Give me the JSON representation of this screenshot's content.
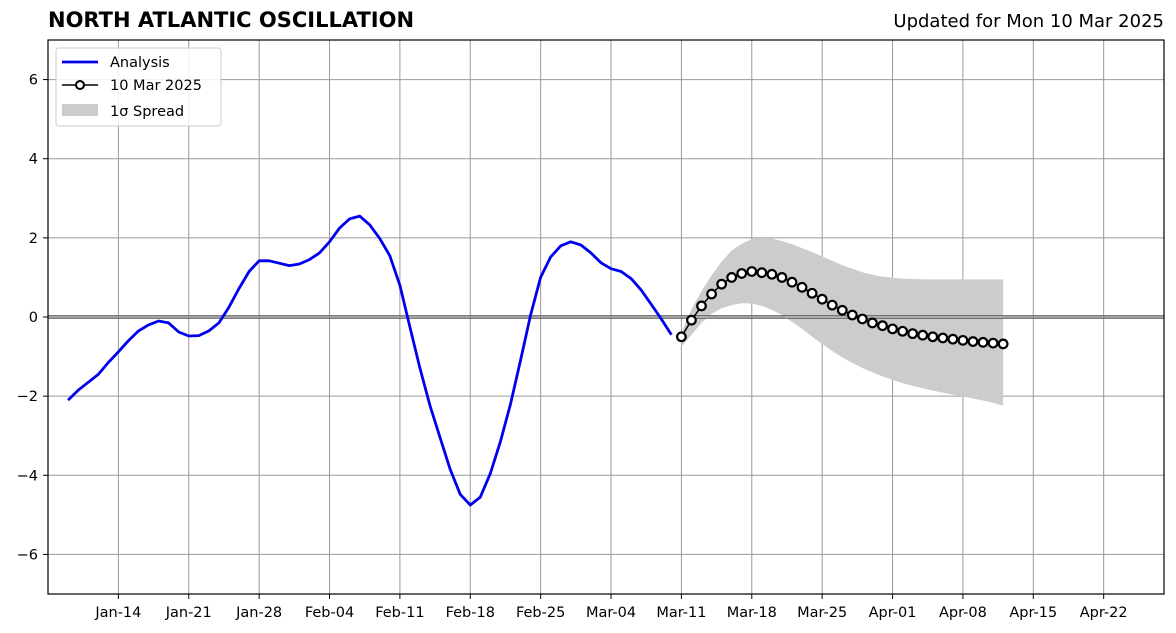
{
  "header": {
    "title": "NORTH ATLANTIC OSCILLATION",
    "updated": "Updated for Mon 10 Mar 2025"
  },
  "colors": {
    "analysis": "#0000ee",
    "forecast": "#000000",
    "spread": "#cccccc",
    "grid": "#999999",
    "zero_line": "#555555"
  },
  "chart_data": {
    "type": "line",
    "title": "NORTH ATLANTIC OSCILLATION",
    "subtitle": "Updated for Mon 10 Mar 2025",
    "xlabel": "",
    "ylabel": "",
    "xlim": [
      "2025-01-07",
      "2025-04-28"
    ],
    "ylim": [
      -7,
      7
    ],
    "grid": true,
    "legend_position": "top-left",
    "x_ticks": [
      "Jan-14",
      "Jan-21",
      "Jan-28",
      "Feb-04",
      "Feb-11",
      "Feb-18",
      "Feb-25",
      "Mar-04",
      "Mar-11",
      "Mar-18",
      "Mar-25",
      "Apr-01",
      "Apr-08",
      "Apr-15",
      "Apr-22"
    ],
    "x_tick_dates": [
      "2025-01-14",
      "2025-01-21",
      "2025-01-28",
      "2025-02-04",
      "2025-02-11",
      "2025-02-18",
      "2025-02-25",
      "2025-03-04",
      "2025-03-11",
      "2025-03-18",
      "2025-03-25",
      "2025-04-01",
      "2025-04-08",
      "2025-04-15",
      "2025-04-22"
    ],
    "y_ticks": [
      -6,
      -4,
      -2,
      0,
      2,
      4,
      6
    ],
    "y_tick_labels": [
      "−6",
      "−4",
      "−2",
      "0",
      "2",
      "4",
      "6"
    ],
    "legend": [
      {
        "label": "Analysis"
      },
      {
        "label": "10 Mar 2025"
      },
      {
        "label": "1σ Spread"
      }
    ],
    "series": [
      {
        "name": "Analysis",
        "start_date": "2025-01-09",
        "values": [
          -2.1,
          -1.85,
          -1.65,
          -1.45,
          -1.15,
          -0.88,
          -0.6,
          -0.35,
          -0.2,
          -0.1,
          -0.15,
          -0.38,
          -0.48,
          -0.47,
          -0.35,
          -0.15,
          0.25,
          0.72,
          1.15,
          1.42,
          1.42,
          1.36,
          1.3,
          1.34,
          1.45,
          1.62,
          1.9,
          2.25,
          2.48,
          2.55,
          2.33,
          1.98,
          1.55,
          0.8,
          -0.25,
          -1.3,
          -2.25,
          -3.05,
          -3.85,
          -4.48,
          -4.75,
          -4.55,
          -3.95,
          -3.15,
          -2.2,
          -1.1,
          0.05,
          1.0,
          1.52,
          1.8,
          1.9,
          1.82,
          1.62,
          1.37,
          1.22,
          1.15,
          0.97,
          0.68,
          0.32,
          -0.05,
          -0.45
        ]
      },
      {
        "name": "10 Mar 2025",
        "start_date": "2025-03-11",
        "values": [
          -0.5,
          -0.08,
          0.28,
          0.58,
          0.83,
          1.0,
          1.1,
          1.15,
          1.12,
          1.08,
          1.0,
          0.88,
          0.75,
          0.6,
          0.45,
          0.3,
          0.17,
          0.05,
          -0.05,
          -0.15,
          -0.22,
          -0.3,
          -0.36,
          -0.42,
          -0.46,
          -0.5,
          -0.53,
          -0.56,
          -0.59,
          -0.62,
          -0.64,
          -0.66,
          -0.68
        ]
      }
    ],
    "spread": {
      "name": "1σ Spread",
      "start_date": "2025-03-11",
      "upper": [
        -0.4,
        0.2,
        0.65,
        1.05,
        1.4,
        1.68,
        1.85,
        1.97,
        2.0,
        1.98,
        1.92,
        1.84,
        1.74,
        1.64,
        1.53,
        1.42,
        1.31,
        1.22,
        1.13,
        1.07,
        1.02,
        0.99,
        0.97,
        0.96,
        0.95,
        0.95,
        0.95,
        0.95,
        0.95,
        0.95,
        0.95,
        0.95,
        0.95
      ],
      "lower": [
        -0.75,
        -0.45,
        -0.15,
        0.08,
        0.22,
        0.3,
        0.35,
        0.34,
        0.28,
        0.18,
        0.05,
        -0.12,
        -0.3,
        -0.5,
        -0.68,
        -0.86,
        -1.02,
        -1.16,
        -1.29,
        -1.4,
        -1.5,
        -1.59,
        -1.67,
        -1.74,
        -1.8,
        -1.86,
        -1.91,
        -1.96,
        -2.01,
        -2.06,
        -2.11,
        -2.17,
        -2.24
      ]
    }
  }
}
